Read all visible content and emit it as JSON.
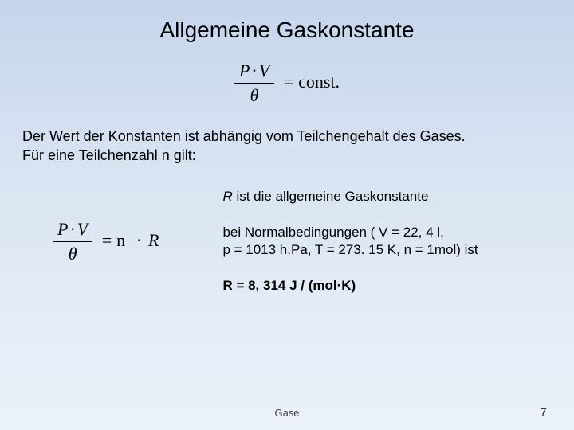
{
  "title": "Allgemeine Gaskonstante",
  "formula1": {
    "numerator_P": "P",
    "numerator_dot": "·",
    "numerator_V": "V",
    "denominator": "θ",
    "eq": "=",
    "rhs": "const."
  },
  "paragraph": {
    "line1": "Der Wert der Konstanten ist abhängig vom Teilchengehalt des Gases.",
    "line2": "Für eine Teilchenzahl n gilt:"
  },
  "formula2": {
    "numerator_P": "P",
    "numerator_dot": "·",
    "numerator_V": "V",
    "denominator": "θ",
    "eq": "=",
    "n": "n",
    "dot": "·",
    "R": "R"
  },
  "right": {
    "p1_R": "R",
    "p1_rest": " ist die allgemeine Gaskonstante",
    "p2a": "bei Normalbedingungen ( V = 22, 4 l,",
    "p2b": "p = 1013 h.Pa, T = 273. 15 K, n = 1mol) ist",
    "p3": "R = 8, 314 J / (mol·K)"
  },
  "footer": {
    "center": "Gase",
    "page": "7"
  },
  "colors": {
    "bg_top": "#c5d5ec",
    "bg_mid": "#d9e4f2",
    "bg_bot": "#ecf2f9",
    "text": "#000000",
    "footer": "#444444"
  },
  "typography": {
    "title_fontsize": 28,
    "body_fontsize": 18,
    "right_fontsize": 17,
    "formula_fontsize": 22,
    "footer_fontsize": 13,
    "page_fontsize": 15,
    "body_font": "Arial",
    "formula_font": "Times New Roman"
  }
}
